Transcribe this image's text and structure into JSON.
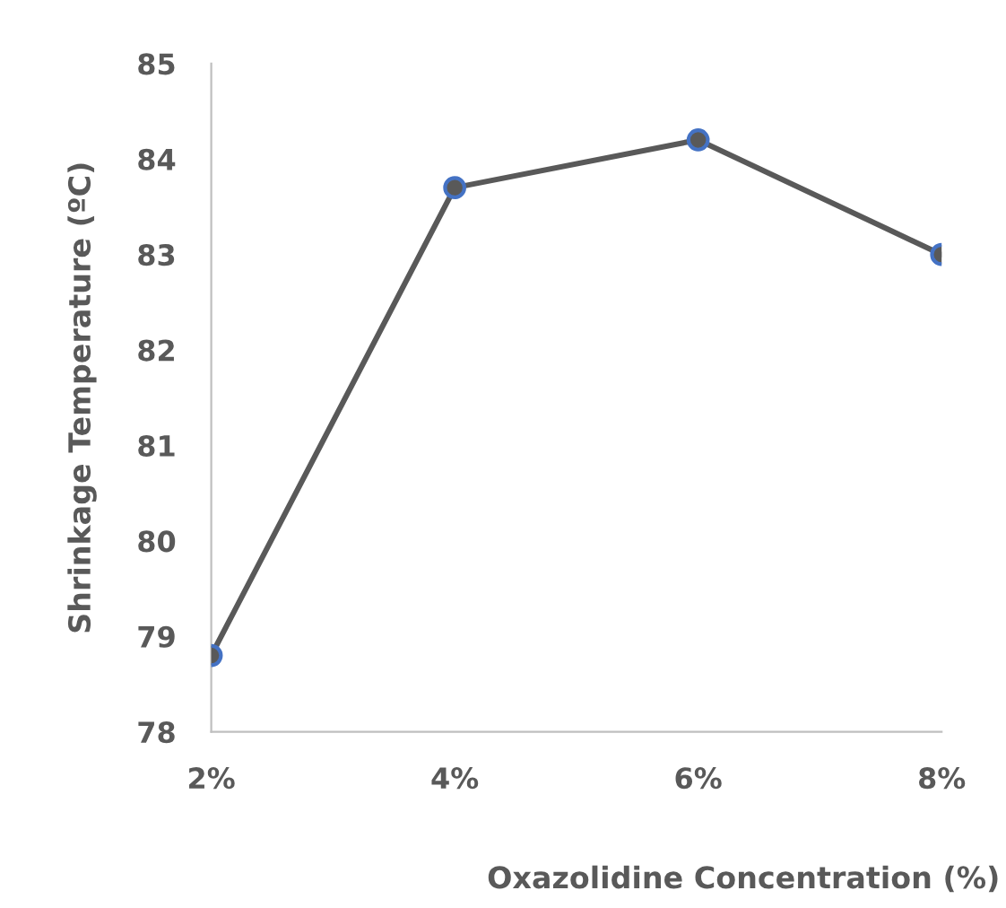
{
  "chart_data": {
    "type": "line",
    "xlabel": "Oxazolidine Concentration (%)",
    "ylabel": "Shrinkage Temperature (ºC)",
    "categories": [
      "2%",
      "4%",
      "6%",
      "8%"
    ],
    "series": [
      {
        "color": "#595959",
        "colors": [
          "#4472c4",
          "#4472c4",
          "#4472c4",
          "#4472c4"
        ],
        "values": [
          78.8,
          83.7,
          84.2,
          83.0
        ]
      }
    ],
    "ylim": [
      78,
      85
    ],
    "yticks": [
      78,
      79,
      80,
      81,
      82,
      83,
      84,
      85
    ],
    "grid": false,
    "legend": false,
    "marker": "circle",
    "line_style": "solid"
  }
}
